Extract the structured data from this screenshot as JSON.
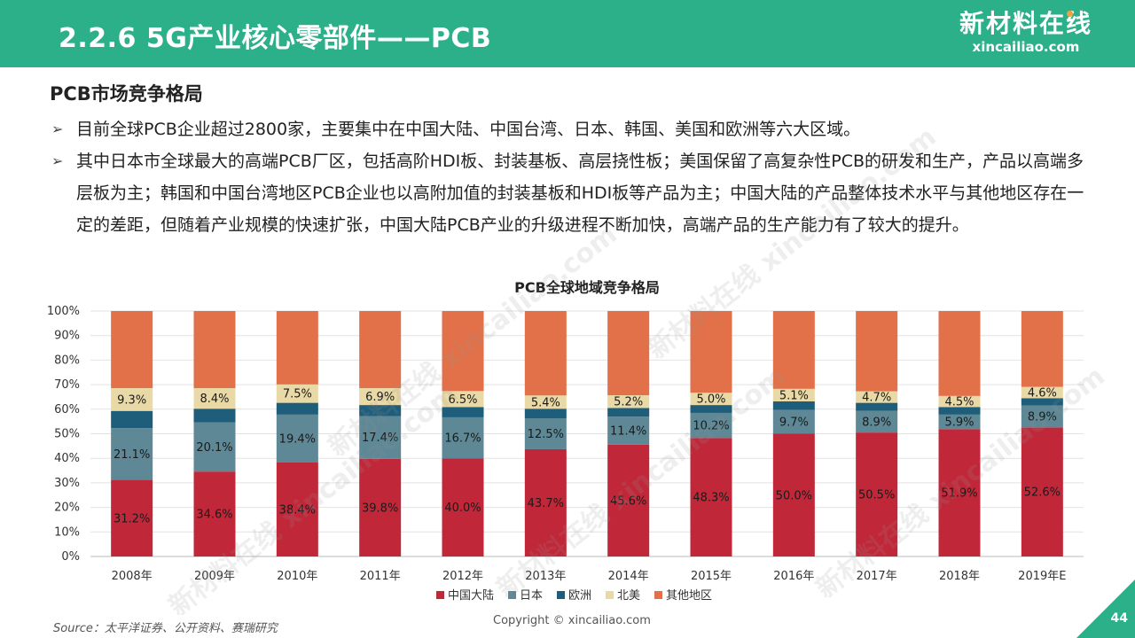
{
  "header": {
    "title": "2.2.6 5G产业核心零部件——PCB",
    "logo_name": "新材料在线",
    "logo_url": "xincailiao.com"
  },
  "section_title": "PCB市场竞争格局",
  "bullets": [
    "目前全球PCB企业超过2800家，主要集中在中国大陆、中国台湾、日本、韩国、美国和欧洲等六大区域。",
    "其中日本市全球最大的高端PCB厂区，包括高阶HDI板、封装基板、高层挠性板；美国保留了高复杂性PCB的研发和生产，产品以高端多层板为主；韩国和中国台湾地区PCB企业也以高附加值的封装基板和HDI板等产品为主；中国大陆的产品整体技术水平与其他地区存在一定的差距，但随着产业规模的快速扩张，中国大陆PCB产业的升级进程不断加快，高端产品的生产能力有了较大的提升。"
  ],
  "chart_data": {
    "type": "bar",
    "stacked": true,
    "percent": true,
    "title": "PCB全球地域竞争格局",
    "categories": [
      "2008年",
      "2009年",
      "2010年",
      "2011年",
      "2012年",
      "2013年",
      "2014年",
      "2015年",
      "2016年",
      "2017年",
      "2018年",
      "2019年E"
    ],
    "ylim": [
      0,
      100
    ],
    "yticks": [
      "0%",
      "10%",
      "20%",
      "30%",
      "40%",
      "50%",
      "60%",
      "70%",
      "80%",
      "90%",
      "100%"
    ],
    "grid": true,
    "legend_position": "bottom",
    "series": [
      {
        "name": "中国大陆",
        "color": "#c0283a",
        "values": [
          31.2,
          34.6,
          38.4,
          39.8,
          40.0,
          43.7,
          45.6,
          48.3,
          50.0,
          50.5,
          51.9,
          52.6
        ],
        "labels": [
          "31.2%",
          "34.6%",
          "38.4%",
          "39.8%",
          "40.0%",
          "43.7%",
          "45.6%",
          "48.3%",
          "50.0%",
          "50.5%",
          "51.9%",
          "52.6%"
        ]
      },
      {
        "name": "日本",
        "color": "#5e8896",
        "values": [
          21.1,
          20.1,
          19.4,
          17.4,
          16.7,
          12.5,
          11.4,
          10.2,
          9.7,
          8.9,
          5.9,
          8.9
        ],
        "labels": [
          "21.1%",
          "20.1%",
          "19.4%",
          "17.4%",
          "16.7%",
          "12.5%",
          "11.4%",
          "10.2%",
          "9.7%",
          "8.9%",
          "5.9%",
          "8.9%"
        ]
      },
      {
        "name": "欧洲",
        "color": "#1f5e7a",
        "values": [
          7.0,
          5.5,
          4.8,
          4.5,
          4.2,
          4.0,
          3.5,
          3.2,
          3.5,
          3.2,
          3.1,
          3.0
        ],
        "labels": null
      },
      {
        "name": "北美",
        "color": "#e9d9a6",
        "values": [
          9.3,
          8.4,
          7.5,
          6.9,
          6.5,
          5.4,
          5.2,
          5.0,
          5.1,
          4.7,
          4.5,
          4.6
        ],
        "labels": [
          "9.3%",
          "8.4%",
          "7.5%",
          "6.9%",
          "6.5%",
          "5.4%",
          "5.2%",
          "5.0%",
          "5.1%",
          "4.7%",
          "4.5%",
          "4.6%"
        ]
      },
      {
        "name": "其他地区",
        "color": "#e27149",
        "values": [
          31.4,
          31.4,
          29.9,
          31.4,
          32.6,
          34.4,
          34.3,
          33.3,
          31.7,
          32.7,
          34.6,
          30.9
        ],
        "labels": null
      }
    ]
  },
  "source": "Source：太平洋证券、公开资料、赛瑞研究",
  "copyright": "Copyright © xincailiao.com",
  "page_number": "44",
  "watermark": "新材料在线 xincailiao.com"
}
